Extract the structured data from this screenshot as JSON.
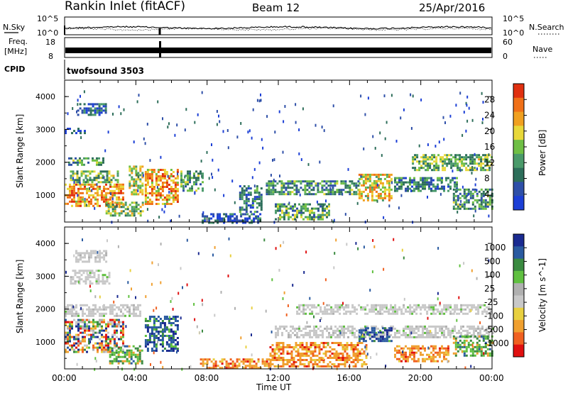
{
  "header": {
    "title": "Rankin Inlet (fitACF)",
    "beam": "Beam 12",
    "date": "25/Apr/2016"
  },
  "top_panels": {
    "nsky_label": "N.Sky",
    "nsky_ticks": [
      "10^5",
      "10^0"
    ],
    "nsearch_label": "N.Search",
    "nsearch_ticks": [
      "10^5",
      "10^0"
    ],
    "freq_label_1": "Freq.",
    "freq_label_2": "[MHz]",
    "freq_ticks": [
      "18",
      "8"
    ],
    "nave_label": "Nave",
    "nave_ticks": [
      "60",
      "0"
    ],
    "cpid_label": "CPID",
    "cpid_value": "twofsound 3503"
  },
  "colors": {
    "power_scale": [
      "#1c3fd6",
      "#2e4fa8",
      "#2d6e5a",
      "#4a9a6a",
      "#6fbf45",
      "#e8d83a",
      "#f0a020",
      "#f07018",
      "#e03010"
    ],
    "velocity_scale": [
      "#e01010",
      "#f06020",
      "#f0a030",
      "#e8d040",
      "#c8c8c8",
      "#b0b0b0",
      "#60c040",
      "#3a8a40",
      "#2a5aa0",
      "#1a2a90"
    ],
    "gray_scatter": "#c8c8c8"
  },
  "chart_data": [
    {
      "type": "heatmap",
      "name": "power",
      "xlabel": "",
      "ylabel": "Slant Range [km]",
      "y_ticks": [
        "1000",
        "2000",
        "3000",
        "4000"
      ],
      "x_ticks": [
        "00:00",
        "04:00",
        "08:00",
        "12:00",
        "16:00",
        "20:00",
        "00:00"
      ],
      "xlim": [
        0,
        24
      ],
      "ylim": [
        180,
        4500
      ],
      "colorbar_label": "Power [dB]",
      "colorbar_ticks": [
        "28",
        "24",
        "20",
        "16",
        "12",
        "8",
        "4"
      ],
      "colorbar_range": [
        0,
        30
      ],
      "regions": [
        {
          "t0": 0.0,
          "t1": 3.3,
          "r0": 650,
          "r1": 1350,
          "level": 0.75
        },
        {
          "t0": 0.3,
          "t1": 3.0,
          "r0": 1400,
          "r1": 1750,
          "level": 0.45
        },
        {
          "t0": 0.2,
          "t1": 2.2,
          "r0": 1950,
          "r1": 2150,
          "level": 0.35
        },
        {
          "t0": 0.7,
          "t1": 2.3,
          "r0": 3450,
          "r1": 3800,
          "level": 0.2
        },
        {
          "t0": 0.0,
          "t1": 1.2,
          "r0": 2900,
          "r1": 3050,
          "level": 0.15
        },
        {
          "t0": 2.3,
          "t1": 4.4,
          "r0": 380,
          "r1": 800,
          "level": 0.5
        },
        {
          "t0": 3.6,
          "t1": 4.4,
          "r0": 1050,
          "r1": 1900,
          "level": 0.55
        },
        {
          "t0": 4.5,
          "t1": 6.3,
          "r0": 750,
          "r1": 1800,
          "level": 0.72
        },
        {
          "t0": 6.5,
          "t1": 7.7,
          "r0": 1150,
          "r1": 1750,
          "level": 0.35
        },
        {
          "t0": 9.8,
          "t1": 11.1,
          "r0": 500,
          "r1": 1300,
          "level": 0.25
        },
        {
          "t0": 11.3,
          "t1": 16.5,
          "r0": 1050,
          "r1": 1450,
          "level": 0.35
        },
        {
          "t0": 16.5,
          "t1": 18.3,
          "r0": 850,
          "r1": 1650,
          "level": 0.62
        },
        {
          "t0": 18.5,
          "t1": 22.0,
          "r0": 1100,
          "r1": 1550,
          "level": 0.3
        },
        {
          "t0": 19.5,
          "t1": 24.0,
          "r0": 1750,
          "r1": 2250,
          "level": 0.45
        },
        {
          "t0": 11.8,
          "t1": 14.8,
          "r0": 250,
          "r1": 750,
          "level": 0.4
        },
        {
          "t0": 7.7,
          "t1": 11.0,
          "r0": 190,
          "r1": 450,
          "level": 0.15
        },
        {
          "t0": 21.8,
          "t1": 24.0,
          "r0": 600,
          "r1": 1200,
          "level": 0.35
        }
      ]
    },
    {
      "type": "heatmap",
      "name": "velocity",
      "xlabel": "Time UT",
      "ylabel": "Slant Range [km]",
      "y_ticks": [
        "1000",
        "2000",
        "3000",
        "4000"
      ],
      "x_ticks": [
        "00:00",
        "04:00",
        "08:00",
        "12:00",
        "16:00",
        "20:00",
        "00:00"
      ],
      "xlim": [
        0,
        24
      ],
      "ylim": [
        180,
        4500
      ],
      "colorbar_label": "Velocity [m s^-1]",
      "colorbar_ticks": [
        "1000",
        "500",
        "100",
        "25",
        "-25",
        "-100",
        "-500",
        "-1000"
      ],
      "regions": [
        {
          "t0": 0.0,
          "t1": 3.3,
          "r0": 700,
          "r1": 1700,
          "vel": "mix"
        },
        {
          "t0": 0.0,
          "t1": 4.2,
          "r0": 1800,
          "r1": 2150,
          "vel": "gray"
        },
        {
          "t0": 0.6,
          "t1": 2.3,
          "r0": 3450,
          "r1": 3800,
          "vel": "gray"
        },
        {
          "t0": 0.3,
          "t1": 2.5,
          "r0": 2800,
          "r1": 3200,
          "vel": "gray"
        },
        {
          "t0": 2.5,
          "t1": 4.4,
          "r0": 350,
          "r1": 900,
          "vel": "green"
        },
        {
          "t0": 4.5,
          "t1": 6.3,
          "r0": 700,
          "r1": 1800,
          "vel": "blue"
        },
        {
          "t0": 7.6,
          "t1": 11.5,
          "r0": 180,
          "r1": 500,
          "vel": "orange"
        },
        {
          "t0": 11.5,
          "t1": 17.0,
          "r0": 250,
          "r1": 1000,
          "vel": "orange"
        },
        {
          "t0": 11.8,
          "t1": 24.0,
          "r0": 1150,
          "r1": 1500,
          "vel": "gray"
        },
        {
          "t0": 13.0,
          "t1": 24.0,
          "r0": 1850,
          "r1": 2150,
          "vel": "gray"
        },
        {
          "t0": 16.5,
          "t1": 18.3,
          "r0": 1000,
          "r1": 1450,
          "vel": "blue"
        },
        {
          "t0": 18.5,
          "t1": 21.5,
          "r0": 400,
          "r1": 900,
          "vel": "orange"
        },
        {
          "t0": 21.8,
          "t1": 24.0,
          "r0": 600,
          "r1": 1200,
          "vel": "green"
        }
      ]
    }
  ]
}
